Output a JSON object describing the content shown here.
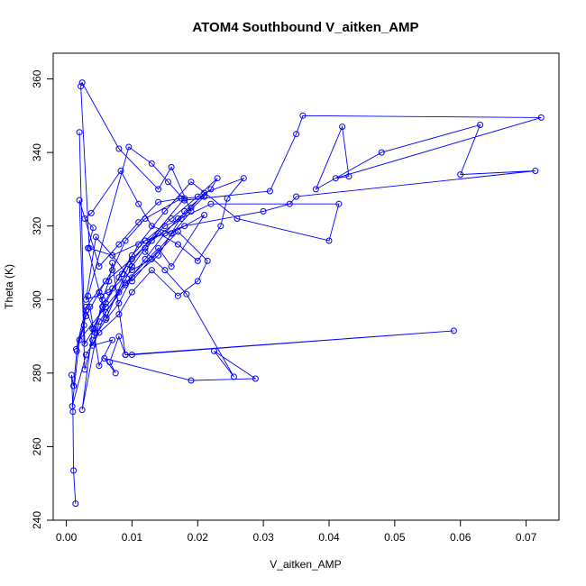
{
  "chart_data": {
    "type": "line",
    "title": "ATOM4 Southbound V_aitken_AMP",
    "xlabel": "V_aitken_AMP",
    "ylabel": "Theta (K)",
    "xlim": [
      -0.002,
      0.075
    ],
    "ylim": [
      240,
      367
    ],
    "xticks": [
      0.0,
      0.01,
      0.02,
      0.03,
      0.04,
      0.05,
      0.06,
      0.07
    ],
    "xtick_labels": [
      "0.00",
      "0.01",
      "0.02",
      "0.03",
      "0.04",
      "0.05",
      "0.06",
      "0.07"
    ],
    "yticks": [
      240,
      260,
      280,
      300,
      320,
      340,
      360
    ],
    "ytick_labels": [
      "240",
      "260",
      "280",
      "300",
      "320",
      "340",
      "360"
    ],
    "grid": false,
    "series_color": "#0000ff",
    "series": [
      {
        "x": [
          0.0014,
          0.0011,
          0.001,
          0.0008,
          0.0011,
          0.0016,
          0.0027,
          0.003,
          0.0044,
          0.0055,
          0.0065,
          0.007,
          0.009,
          0.01,
          0.059,
          0.009,
          0.008,
          0.0066,
          0.0075,
          0.0058,
          0.019,
          0.0288,
          0.0225,
          0.0255,
          0.0183,
          0.015,
          0.012,
          0.013,
          0.0175,
          0.021,
          0.018,
          0.0096,
          0.0061,
          0.0052,
          0.0033,
          0.0041,
          0.0028,
          0.0038,
          0.0083,
          0.011,
          0.013,
          0.016,
          0.018,
          0.022,
          0.023,
          0.02,
          0.016,
          0.012,
          0.01,
          0.008,
          0.006,
          0.004,
          0.0024,
          0.005,
          0.009,
          0.012,
          0.015,
          0.017,
          0.019,
          0.021,
          0.027,
          0.0245,
          0.0235,
          0.02,
          0.017,
          0.014,
          0.012,
          0.01,
          0.008,
          0.006,
          0.004,
          0.007,
          0.005,
          0.0036,
          0.0033,
          0.0095,
          0.013,
          0.0155,
          0.018,
          0.031,
          0.035,
          0.036,
          0.0723,
          0.041,
          0.043,
          0.042,
          0.038,
          0.048,
          0.063,
          0.06,
          0.0714,
          0.035,
          0.034,
          0.03,
          0.018,
          0.012,
          0.007,
          0.0035,
          0.0022,
          0.0024,
          0.008,
          0.014,
          0.016,
          0.019,
          0.01,
          0.007,
          0.0045,
          0.003,
          0.0065,
          0.01,
          0.013,
          0.017,
          0.0215,
          0.02,
          0.017,
          0.013,
          0.01,
          0.008,
          0.005,
          0.003,
          0.0009,
          0.002,
          0.006,
          0.009,
          0.014,
          0.016,
          0.021,
          0.016,
          0.014,
          0.01,
          0.008,
          0.006,
          0.004,
          0.0028,
          0.002,
          0.005,
          0.008,
          0.011,
          0.014,
          0.0175,
          0.012,
          0.009,
          0.007,
          0.005,
          0.003,
          0.0015,
          0.003,
          0.006,
          0.01,
          0.015,
          0.022,
          0.0415,
          0.04,
          0.026,
          0.019,
          0.015,
          0.011,
          0.0085,
          0.007,
          0.0055,
          0.0042,
          0.0028,
          0.002
        ],
        "y": [
          244.5,
          253.5,
          269.5,
          279.5,
          276.5,
          286.0,
          293.0,
          297.0,
          291.0,
          300.0,
          305.0,
          310.0,
          285.0,
          285.0,
          291.5,
          285.0,
          290.0,
          283.0,
          280.0,
          284.0,
          278.0,
          278.5,
          286.0,
          279.0,
          301.5,
          308.0,
          313.0,
          316.0,
          322.0,
          328.0,
          327.5,
          309.5,
          295.0,
          301.0,
          314.0,
          319.5,
          322.0,
          323.5,
          335.0,
          326.0,
          320.0,
          318.0,
          324.0,
          330.0,
          333.0,
          328.0,
          322.0,
          316.0,
          312.0,
          306.0,
          299.0,
          292.0,
          270.0,
          294.0,
          304.0,
          311.0,
          318.0,
          322.0,
          325.0,
          329.0,
          333.0,
          327.5,
          320.0,
          310.5,
          315.0,
          318.0,
          314.0,
          309.0,
          302.0,
          296.5,
          287.5,
          289.0,
          282.0,
          298.0,
          301.0,
          341.5,
          337.0,
          332.0,
          327.0,
          329.5,
          345.0,
          350.0,
          349.5,
          333.0,
          333.5,
          347.0,
          330.0,
          340.0,
          347.5,
          334.0,
          335.0,
          328.0,
          326.0,
          324.0,
          320.0,
          316.0,
          312.0,
          314.0,
          358.0,
          359.0,
          341.0,
          330.0,
          336.0,
          324.0,
          305.0,
          312.0,
          317.0,
          300.0,
          302.0,
          308.0,
          311.0,
          318.5,
          310.5,
          305.0,
          301.0,
          308.0,
          302.0,
          296.0,
          291.0,
          285.0,
          271.0,
          289.0,
          298.0,
          304.5,
          314.0,
          309.0,
          323.0,
          318.0,
          312.0,
          306.0,
          299.0,
          294.5,
          289.0,
          281.0,
          327.0,
          309.0,
          315.0,
          321.0,
          326.5,
          327.5,
          322.0,
          316.0,
          308.0,
          302.0,
          295.5,
          286.5,
          298.0,
          305.0,
          311.0,
          320.0,
          326.0,
          326.0,
          316.0,
          322.0,
          332.0,
          324.0,
          315.0,
          307.0,
          303.0,
          298.0,
          292.0,
          288.0,
          345.5
        ]
      }
    ]
  }
}
